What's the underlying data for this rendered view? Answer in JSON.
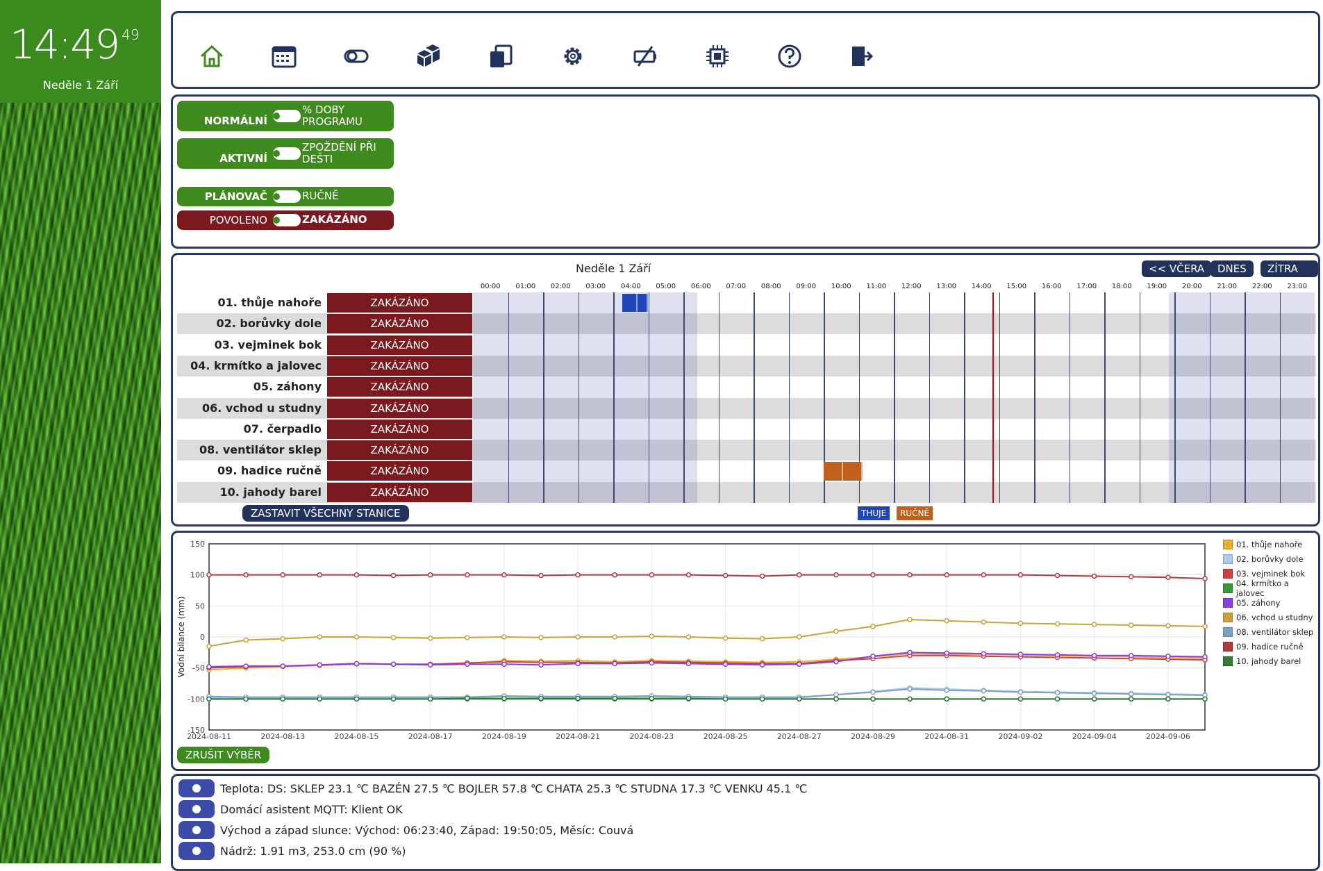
{
  "clock": {
    "hm": "14:49",
    "sec": "49",
    "date": "Neděle 1 Září"
  },
  "toolbar": {
    "icons": [
      "home-icon",
      "calendar-icon",
      "toggle-icon",
      "packages-icon",
      "clone-icon",
      "gear-icon",
      "no-battery-icon",
      "chip-icon",
      "help-icon",
      "logout-icon"
    ]
  },
  "controls": {
    "mode": {
      "label": "NORMÁLNÍ",
      "right": "% DOBY PROGRAMU"
    },
    "active": {
      "label": "AKTIVNÍ",
      "right": "ZPOŽDĚNÍ PŘI DEŠTI"
    },
    "planner": {
      "label": "PLÁNOVAČ",
      "right": "RUČNĚ"
    },
    "enable": {
      "label": "POVOLENO",
      "right": "ZAKÁZÁNO"
    }
  },
  "schedule": {
    "title": "Neděle 1 Září",
    "nav": {
      "prev": "<< VČERA",
      "today": "DNES",
      "next": "ZÍTRA >>"
    },
    "hours": [
      "00:00",
      "01:00",
      "02:00",
      "03:00",
      "04:00",
      "05:00",
      "06:00",
      "07:00",
      "08:00",
      "09:00",
      "10:00",
      "11:00",
      "12:00",
      "13:00",
      "14:00",
      "15:00",
      "16:00",
      "17:00",
      "18:00",
      "19:00",
      "20:00",
      "21:00",
      "22:00",
      "23:00"
    ],
    "stations": [
      {
        "name": "01. thůje nahoře",
        "status": "ZAKÁZÁNO"
      },
      {
        "name": "02. borůvky dole",
        "status": "ZAKÁZÁNO"
      },
      {
        "name": "03. vejminek bok",
        "status": "ZAKÁZÁNO"
      },
      {
        "name": "04. krmítko a jalovec",
        "status": "ZAKÁZÁNO"
      },
      {
        "name": "05. záhony",
        "status": "ZAKÁZÁNO"
      },
      {
        "name": "06. vchod u studny",
        "status": "ZAKÁZÁNO"
      },
      {
        "name": "07. čerpadlo",
        "status": "ZAKÁZÁNO"
      },
      {
        "name": "08. ventilátor sklep",
        "status": "ZAKÁZÁNO"
      },
      {
        "name": "09. hadice ručně",
        "status": "ZAKÁZÁNO"
      },
      {
        "name": "10. jahody barel",
        "status": "ZAKÁZÁNO"
      }
    ],
    "stop_all": "ZASTAVIT VŠECHNY STANICE",
    "legend": [
      {
        "label": "THUJE",
        "color": "#1f45b8"
      },
      {
        "label": "RUČNĚ",
        "color": "#c0601a"
      }
    ]
  },
  "chart_data": {
    "type": "line",
    "ylabel": "Vodní bilance (mm)",
    "ylim": [
      -150,
      150
    ],
    "yticks": [
      150,
      100,
      50,
      0,
      -50,
      -100,
      -150
    ],
    "xticks": [
      "2024-08-11",
      "2024-08-13",
      "2024-08-15",
      "2024-08-17",
      "2024-08-19",
      "2024-08-21",
      "2024-08-23",
      "2024-08-25",
      "2024-08-27",
      "2024-08-29",
      "2024-08-31",
      "2024-09-02",
      "2024-09-04",
      "2024-09-06"
    ],
    "x": [
      "2024-08-11",
      "2024-08-12",
      "2024-08-13",
      "2024-08-14",
      "2024-08-15",
      "2024-08-16",
      "2024-08-17",
      "2024-08-18",
      "2024-08-19",
      "2024-08-20",
      "2024-08-21",
      "2024-08-22",
      "2024-08-23",
      "2024-08-24",
      "2024-08-25",
      "2024-08-26",
      "2024-08-27",
      "2024-08-28",
      "2024-08-29",
      "2024-08-30",
      "2024-08-31",
      "2024-09-01",
      "2024-09-02",
      "2024-09-03",
      "2024-09-04",
      "2024-09-05",
      "2024-09-06",
      "2024-09-07"
    ],
    "series": [
      {
        "name": "01. thůje nahoře",
        "color": "#e8b030",
        "values": [
          -53,
          -50,
          -48,
          -46,
          -44,
          -44,
          -45,
          -43,
          -38,
          -39,
          -38,
          -40,
          -38,
          -39,
          -40,
          -41,
          -40,
          -36,
          -32,
          -27,
          -28,
          -28,
          -29,
          -30,
          -31,
          -32,
          -33,
          -34
        ]
      },
      {
        "name": "02. borůvky dole",
        "color": "#a8ccec",
        "values": [
          -98,
          -98,
          -98,
          -98,
          -98,
          -98,
          -98,
          -98,
          -96,
          -97,
          -97,
          -97,
          -96,
          -97,
          -98,
          -98,
          -98,
          -93,
          -88,
          -82,
          -84,
          -86,
          -88,
          -89,
          -90,
          -91,
          -92,
          -93
        ]
      },
      {
        "name": "03. vejminek bok",
        "color": "#cf4040",
        "values": [
          -50,
          -48,
          -47,
          -45,
          -43,
          -44,
          -44,
          -42,
          -40,
          -41,
          -41,
          -42,
          -40,
          -41,
          -42,
          -43,
          -43,
          -38,
          -35,
          -30,
          -30,
          -31,
          -32,
          -33,
          -34,
          -35,
          -36,
          -37
        ]
      },
      {
        "name": "04. krmítko a jalovec",
        "color": "#3a9a3a",
        "values": [
          -100,
          -100,
          -100,
          -100,
          -100,
          -100,
          -100,
          -100,
          -100,
          -100,
          -100,
          -100,
          -100,
          -100,
          -100,
          -100,
          -100,
          -100,
          -100,
          -100,
          -100,
          -100,
          -100,
          -100,
          -100,
          -100,
          -100,
          -100
        ]
      },
      {
        "name": "05. záhony",
        "color": "#8a3de0",
        "values": [
          -48,
          -47,
          -47,
          -45,
          -43,
          -44,
          -45,
          -44,
          -44,
          -45,
          -43,
          -43,
          -42,
          -43,
          -44,
          -45,
          -44,
          -40,
          -31,
          -25,
          -26,
          -27,
          -28,
          -29,
          -30,
          -30,
          -31,
          -32
        ]
      },
      {
        "name": "06. vchod u studny",
        "color": "#c9a23a",
        "values": [
          -15,
          -5,
          -3,
          0,
          0,
          -1,
          -2,
          -1,
          0,
          -1,
          0,
          0,
          1,
          0,
          -2,
          -3,
          0,
          9,
          17,
          28,
          26,
          24,
          22,
          21,
          20,
          19,
          18,
          17
        ]
      },
      {
        "name": "08. ventilátor sklep",
        "color": "#7ea0c0",
        "values": [
          -96,
          -97,
          -97,
          -97,
          -97,
          -97,
          -97,
          -97,
          -95,
          -96,
          -96,
          -96,
          -95,
          -96,
          -97,
          -97,
          -97,
          -93,
          -89,
          -84,
          -86,
          -87,
          -89,
          -90,
          -91,
          -92,
          -93,
          -94
        ]
      },
      {
        "name": "09. hadice ručně",
        "color": "#b23a3a",
        "values": [
          100,
          100,
          100,
          100,
          100,
          99,
          100,
          100,
          100,
          99,
          100,
          100,
          100,
          100,
          99,
          98,
          100,
          100,
          100,
          100,
          100,
          100,
          100,
          99,
          98,
          97,
          96,
          94
        ]
      },
      {
        "name": "10. jahody barel",
        "color": "#2e7d32",
        "values": [
          -100,
          -100,
          -100,
          -100,
          -100,
          -100,
          -100,
          -99,
          -99,
          -99,
          -99,
          -99,
          -99,
          -99,
          -100,
          -100,
          -100,
          -100,
          -100,
          -100,
          -100,
          -100,
          -100,
          -100,
          -100,
          -100,
          -100,
          -100
        ]
      }
    ],
    "clear_selection": "ZRUŠIT VÝBĚR"
  },
  "status": [
    "Teplota: DS: SKLEP 23.1 ℃ BAZÉN 27.5 ℃ BOJLER 57.8 ℃ CHATA 25.3 ℃ STUDNA 17.3 ℃ VENKU 45.1 ℃",
    "Domácí asistent MQTT: Klient OK",
    "Východ a západ slunce: Východ: 06:23:40, Západ: 19:50:05, Měsíc: Couvá",
    "Nádrž: 1.91 m3, 253.0 cm (90 %)"
  ]
}
